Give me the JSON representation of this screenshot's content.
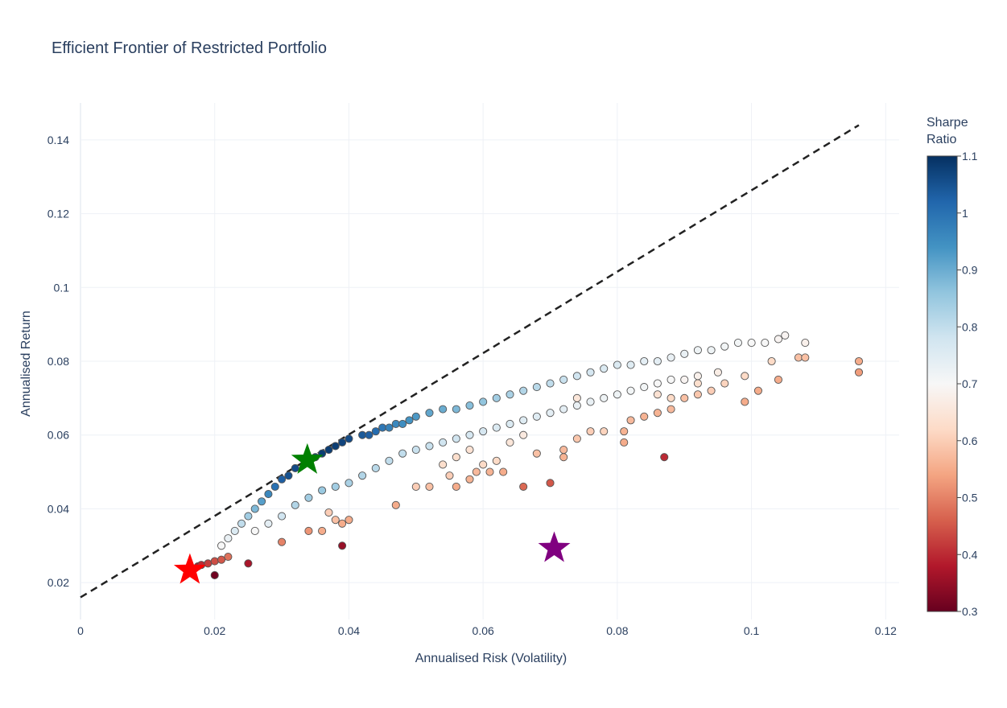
{
  "chart_data": {
    "type": "scatter",
    "title": "Efficient Frontier of Restricted Portfolio",
    "xlabel": "Annualised Risk (Volatility)",
    "ylabel": "Annualised Return",
    "xlim": [
      0,
      0.122
    ],
    "ylim": [
      0.01,
      0.15
    ],
    "x_ticks": [
      "0",
      "0.02",
      "0.04",
      "0.06",
      "0.08",
      "0.1",
      "0.12"
    ],
    "y_ticks": [
      "0.02",
      "0.04",
      "0.06",
      "0.08",
      "0.1",
      "0.12",
      "0.14"
    ],
    "grid": true,
    "colorbar": {
      "title_line1": "Sharpe",
      "title_line2": "Ratio",
      "range": [
        0.3,
        1.1
      ],
      "ticks": [
        "0.3",
        "0.4",
        "0.5",
        "0.6",
        "0.7",
        "0.8",
        "0.9",
        "1",
        "1.1"
      ],
      "colorscale": [
        "#67001f",
        "#b2182b",
        "#d6604d",
        "#f4a582",
        "#fddbc7",
        "#f7f7f7",
        "#d1e5f0",
        "#92c5de",
        "#4393c3",
        "#2166ac",
        "#053061"
      ]
    },
    "capital_market_line": {
      "style": "dashed",
      "color": "#222222",
      "x": [
        0,
        0.116
      ],
      "y": [
        0.016,
        0.144
      ]
    },
    "markers": [
      {
        "name": "min-volatility-star",
        "color": "#ff0000",
        "x": 0.0163,
        "y": 0.0234
      },
      {
        "name": "max-sharpe-star",
        "color": "#008000",
        "x": 0.0338,
        "y": 0.0532
      },
      {
        "name": "other-star",
        "color": "#800080",
        "x": 0.0706,
        "y": 0.0293
      }
    ],
    "frontier_points": [
      [
        0.0175,
        0.0244,
        0.38
      ],
      [
        0.018,
        0.0248,
        0.4
      ],
      [
        0.019,
        0.0252,
        0.42
      ],
      [
        0.02,
        0.0258,
        0.44
      ],
      [
        0.021,
        0.0262,
        0.45
      ],
      [
        0.022,
        0.027,
        0.48
      ],
      [
        0.02,
        0.022,
        0.31
      ],
      [
        0.025,
        0.0252,
        0.37
      ],
      [
        0.021,
        0.03,
        0.7
      ],
      [
        0.022,
        0.032,
        0.73
      ],
      [
        0.023,
        0.034,
        0.76
      ],
      [
        0.024,
        0.036,
        0.8
      ],
      [
        0.025,
        0.038,
        0.84
      ],
      [
        0.026,
        0.04,
        0.88
      ],
      [
        0.027,
        0.042,
        0.92
      ],
      [
        0.028,
        0.044,
        0.96
      ],
      [
        0.029,
        0.046,
        1.0
      ],
      [
        0.03,
        0.048,
        1.03
      ],
      [
        0.031,
        0.049,
        1.05
      ],
      [
        0.032,
        0.051,
        1.06
      ],
      [
        0.034,
        0.053,
        1.07
      ],
      [
        0.035,
        0.054,
        1.07
      ],
      [
        0.036,
        0.055,
        1.08
      ],
      [
        0.037,
        0.056,
        1.08
      ],
      [
        0.038,
        0.057,
        1.08
      ],
      [
        0.039,
        0.058,
        1.07
      ],
      [
        0.04,
        0.059,
        1.06
      ],
      [
        0.042,
        0.06,
        1.04
      ],
      [
        0.043,
        0.06,
        1.03
      ],
      [
        0.044,
        0.061,
        1.01
      ],
      [
        0.045,
        0.062,
        0.99
      ],
      [
        0.046,
        0.062,
        0.97
      ],
      [
        0.047,
        0.063,
        0.96
      ],
      [
        0.048,
        0.063,
        0.95
      ],
      [
        0.049,
        0.064,
        0.94
      ],
      [
        0.05,
        0.065,
        0.93
      ],
      [
        0.052,
        0.066,
        0.91
      ],
      [
        0.054,
        0.067,
        0.9
      ],
      [
        0.056,
        0.067,
        0.88
      ],
      [
        0.058,
        0.068,
        0.87
      ],
      [
        0.06,
        0.069,
        0.86
      ],
      [
        0.062,
        0.07,
        0.84
      ],
      [
        0.064,
        0.071,
        0.83
      ],
      [
        0.066,
        0.072,
        0.82
      ],
      [
        0.068,
        0.073,
        0.81
      ],
      [
        0.07,
        0.074,
        0.8
      ],
      [
        0.072,
        0.075,
        0.79
      ],
      [
        0.074,
        0.076,
        0.78
      ],
      [
        0.076,
        0.077,
        0.77
      ],
      [
        0.078,
        0.078,
        0.76
      ],
      [
        0.08,
        0.079,
        0.76
      ],
      [
        0.082,
        0.079,
        0.75
      ],
      [
        0.084,
        0.08,
        0.74
      ],
      [
        0.086,
        0.08,
        0.74
      ],
      [
        0.088,
        0.081,
        0.73
      ],
      [
        0.09,
        0.082,
        0.73
      ],
      [
        0.092,
        0.083,
        0.72
      ],
      [
        0.094,
        0.083,
        0.72
      ],
      [
        0.096,
        0.084,
        0.71
      ],
      [
        0.098,
        0.085,
        0.71
      ],
      [
        0.1,
        0.085,
        0.7
      ],
      [
        0.102,
        0.085,
        0.7
      ],
      [
        0.104,
        0.086,
        0.69
      ],
      [
        0.105,
        0.087,
        0.69
      ],
      [
        0.108,
        0.085,
        0.68
      ],
      [
        0.026,
        0.034,
        0.7
      ],
      [
        0.028,
        0.036,
        0.74
      ],
      [
        0.03,
        0.038,
        0.78
      ],
      [
        0.032,
        0.041,
        0.82
      ],
      [
        0.034,
        0.043,
        0.84
      ],
      [
        0.036,
        0.045,
        0.85
      ],
      [
        0.038,
        0.046,
        0.84
      ],
      [
        0.04,
        0.047,
        0.83
      ],
      [
        0.042,
        0.049,
        0.82
      ],
      [
        0.044,
        0.051,
        0.81
      ],
      [
        0.046,
        0.053,
        0.8
      ],
      [
        0.048,
        0.055,
        0.8
      ],
      [
        0.05,
        0.056,
        0.79
      ],
      [
        0.052,
        0.057,
        0.79
      ],
      [
        0.054,
        0.058,
        0.78
      ],
      [
        0.056,
        0.059,
        0.78
      ],
      [
        0.058,
        0.06,
        0.77
      ],
      [
        0.06,
        0.061,
        0.77
      ],
      [
        0.062,
        0.062,
        0.76
      ],
      [
        0.064,
        0.063,
        0.76
      ],
      [
        0.066,
        0.064,
        0.75
      ],
      [
        0.068,
        0.065,
        0.75
      ],
      [
        0.07,
        0.066,
        0.74
      ],
      [
        0.072,
        0.067,
        0.74
      ],
      [
        0.074,
        0.068,
        0.73
      ],
      [
        0.076,
        0.069,
        0.73
      ],
      [
        0.078,
        0.07,
        0.72
      ],
      [
        0.08,
        0.071,
        0.72
      ],
      [
        0.082,
        0.072,
        0.71
      ],
      [
        0.084,
        0.073,
        0.71
      ],
      [
        0.086,
        0.074,
        0.7
      ],
      [
        0.088,
        0.075,
        0.7
      ],
      [
        0.09,
        0.075,
        0.69
      ],
      [
        0.092,
        0.076,
        0.68
      ],
      [
        0.095,
        0.077,
        0.67
      ],
      [
        0.037,
        0.039,
        0.6
      ],
      [
        0.038,
        0.037,
        0.58
      ],
      [
        0.039,
        0.036,
        0.55
      ],
      [
        0.04,
        0.037,
        0.55
      ],
      [
        0.036,
        0.034,
        0.55
      ],
      [
        0.034,
        0.034,
        0.52
      ],
      [
        0.03,
        0.031,
        0.5
      ],
      [
        0.039,
        0.03,
        0.35
      ],
      [
        0.047,
        0.041,
        0.55
      ],
      [
        0.05,
        0.046,
        0.6
      ],
      [
        0.052,
        0.046,
        0.58
      ],
      [
        0.056,
        0.046,
        0.55
      ],
      [
        0.058,
        0.048,
        0.56
      ],
      [
        0.059,
        0.05,
        0.57
      ],
      [
        0.061,
        0.05,
        0.56
      ],
      [
        0.063,
        0.05,
        0.55
      ],
      [
        0.066,
        0.046,
        0.47
      ],
      [
        0.07,
        0.047,
        0.45
      ],
      [
        0.072,
        0.054,
        0.56
      ],
      [
        0.072,
        0.056,
        0.57
      ],
      [
        0.068,
        0.055,
        0.58
      ],
      [
        0.074,
        0.059,
        0.59
      ],
      [
        0.076,
        0.061,
        0.6
      ],
      [
        0.078,
        0.061,
        0.61
      ],
      [
        0.081,
        0.058,
        0.55
      ],
      [
        0.081,
        0.061,
        0.56
      ],
      [
        0.082,
        0.064,
        0.57
      ],
      [
        0.084,
        0.065,
        0.56
      ],
      [
        0.086,
        0.066,
        0.56
      ],
      [
        0.088,
        0.067,
        0.57
      ],
      [
        0.09,
        0.07,
        0.58
      ],
      [
        0.092,
        0.071,
        0.59
      ],
      [
        0.094,
        0.072,
        0.6
      ],
      [
        0.096,
        0.074,
        0.61
      ],
      [
        0.099,
        0.069,
        0.55
      ],
      [
        0.101,
        0.072,
        0.55
      ],
      [
        0.104,
        0.075,
        0.55
      ],
      [
        0.107,
        0.081,
        0.58
      ],
      [
        0.108,
        0.081,
        0.58
      ],
      [
        0.116,
        0.08,
        0.55
      ],
      [
        0.116,
        0.077,
        0.53
      ],
      [
        0.087,
        0.054,
        0.4
      ],
      [
        0.099,
        0.076,
        0.62
      ],
      [
        0.103,
        0.08,
        0.62
      ],
      [
        0.092,
        0.074,
        0.63
      ],
      [
        0.088,
        0.07,
        0.62
      ],
      [
        0.086,
        0.071,
        0.64
      ],
      [
        0.074,
        0.07,
        0.65
      ],
      [
        0.06,
        0.052,
        0.62
      ],
      [
        0.062,
        0.053,
        0.62
      ],
      [
        0.055,
        0.049,
        0.6
      ],
      [
        0.054,
        0.052,
        0.63
      ],
      [
        0.064,
        0.058,
        0.65
      ],
      [
        0.066,
        0.06,
        0.66
      ],
      [
        0.056,
        0.054,
        0.63
      ],
      [
        0.058,
        0.056,
        0.64
      ]
    ]
  }
}
